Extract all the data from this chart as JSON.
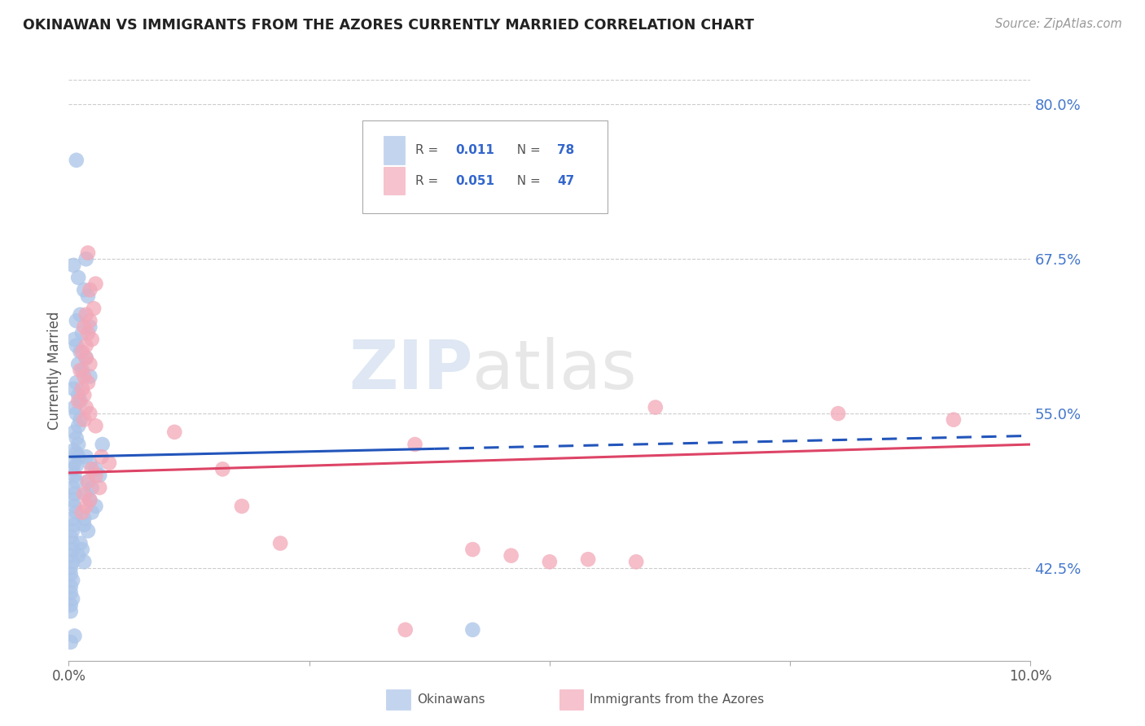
{
  "title": "OKINAWAN VS IMMIGRANTS FROM THE AZORES CURRENTLY MARRIED CORRELATION CHART",
  "source": "Source: ZipAtlas.com",
  "ylabel": "Currently Married",
  "right_yticks": [
    42.5,
    55.0,
    67.5,
    80.0
  ],
  "right_ytick_labels": [
    "42.5%",
    "55.0%",
    "67.5%",
    "80.0%"
  ],
  "xmin": 0.0,
  "xmax": 10.0,
  "ymin": 35.0,
  "ymax": 82.0,
  "blue_color": "#aac4e8",
  "pink_color": "#f2a8b8",
  "trend_blue": "#2255bb",
  "trend_pink": "#dd4466",
  "watermark_zip": "ZIP",
  "watermark_atlas": "atlas",
  "blue_trend_y0": 51.5,
  "blue_trend_y10": 53.2,
  "blue_solid_end": 3.8,
  "pink_trend_y0": 50.2,
  "pink_trend_y10": 52.5,
  "blue_dots_x": [
    0.08,
    0.18,
    0.05,
    0.1,
    0.16,
    0.2,
    0.12,
    0.08,
    0.22,
    0.14,
    0.06,
    0.08,
    0.12,
    0.18,
    0.1,
    0.14,
    0.22,
    0.08,
    0.05,
    0.1,
    0.12,
    0.06,
    0.08,
    0.12,
    0.1,
    0.06,
    0.08,
    0.1,
    0.05,
    0.08,
    0.1,
    0.06,
    0.08,
    0.04,
    0.06,
    0.08,
    0.04,
    0.06,
    0.04,
    0.06,
    0.08,
    0.04,
    0.06,
    0.04,
    0.02,
    0.04,
    0.04,
    0.02,
    0.04,
    0.02,
    0.02,
    0.04,
    0.02,
    0.02,
    0.04,
    0.02,
    0.02,
    0.35,
    0.18,
    0.22,
    0.28,
    0.32,
    0.2,
    0.24,
    0.18,
    0.22,
    0.28,
    0.24,
    0.16,
    0.16,
    0.2,
    0.12,
    0.14,
    0.1,
    0.16,
    4.2,
    0.06,
    0.02
  ],
  "blue_dots_y": [
    75.5,
    67.5,
    67.0,
    66.0,
    65.0,
    64.5,
    63.0,
    62.5,
    62.0,
    61.5,
    61.0,
    60.5,
    60.0,
    59.5,
    59.0,
    58.5,
    58.0,
    57.5,
    57.0,
    56.5,
    56.0,
    55.5,
    55.0,
    54.5,
    54.0,
    53.5,
    53.0,
    52.5,
    52.0,
    51.8,
    51.5,
    51.0,
    50.8,
    50.5,
    50.0,
    49.5,
    49.0,
    48.5,
    48.0,
    47.5,
    47.0,
    46.5,
    46.0,
    45.5,
    45.0,
    44.5,
    44.0,
    43.5,
    43.0,
    42.5,
    42.0,
    41.5,
    41.0,
    40.5,
    40.0,
    39.5,
    39.0,
    52.5,
    51.5,
    51.0,
    50.5,
    50.0,
    49.5,
    49.0,
    48.5,
    48.0,
    47.5,
    47.0,
    46.5,
    46.0,
    45.5,
    44.5,
    44.0,
    43.5,
    43.0,
    37.5,
    37.0,
    36.5
  ],
  "pink_dots_x": [
    0.2,
    0.28,
    0.22,
    0.26,
    0.18,
    0.22,
    0.16,
    0.2,
    0.24,
    0.18,
    0.14,
    0.18,
    0.22,
    0.12,
    0.16,
    0.2,
    0.14,
    0.16,
    0.1,
    0.18,
    0.22,
    0.16,
    0.28,
    1.1,
    3.6,
    6.1,
    8.0,
    9.2,
    0.34,
    0.42,
    0.24,
    0.28,
    0.2,
    0.32,
    0.16,
    0.22,
    0.18,
    0.14,
    1.6,
    1.8,
    2.2,
    4.2,
    4.6,
    5.0,
    5.4,
    5.9,
    3.5
  ],
  "pink_dots_y": [
    68.0,
    65.5,
    65.0,
    63.5,
    63.0,
    62.5,
    62.0,
    61.5,
    61.0,
    60.5,
    60.0,
    59.5,
    59.0,
    58.5,
    58.0,
    57.5,
    57.0,
    56.5,
    56.0,
    55.5,
    55.0,
    54.5,
    54.0,
    53.5,
    52.5,
    55.5,
    55.0,
    54.5,
    51.5,
    51.0,
    50.5,
    50.0,
    49.5,
    49.0,
    48.5,
    48.0,
    47.5,
    47.0,
    50.5,
    47.5,
    44.5,
    44.0,
    43.5,
    43.0,
    43.2,
    43.0,
    37.5
  ]
}
